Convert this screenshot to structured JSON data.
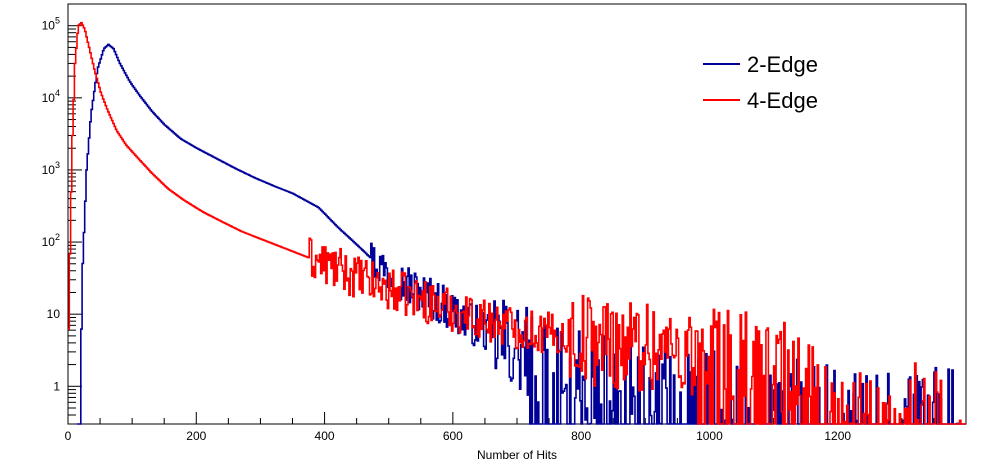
{
  "chart_data": {
    "type": "line",
    "xlabel": "Number of Hits",
    "ylabel": "",
    "xlim": [
      0,
      1400
    ],
    "ylim": [
      0.3,
      200000
    ],
    "yscale": "log",
    "grid": false,
    "legend_position": "top-right",
    "x_ticks": [
      0,
      200,
      400,
      600,
      800,
      1000,
      1200
    ],
    "x_tick_labels": [
      "0",
      "200",
      "400",
      "600",
      "800",
      "1000",
      "1200"
    ],
    "y_ticks": [
      1,
      10,
      100,
      1000,
      10000,
      100000
    ],
    "y_tick_labels": [
      {
        "base": "1",
        "exp": ""
      },
      {
        "base": "10",
        "exp": ""
      },
      {
        "base": "10",
        "exp": "2"
      },
      {
        "base": "10",
        "exp": "3"
      },
      {
        "base": "10",
        "exp": "4"
      },
      {
        "base": "10",
        "exp": "5"
      }
    ],
    "series": [
      {
        "name": "2-Edge",
        "color": "#000099",
        "points": [
          [
            14,
            0.3
          ],
          [
            18,
            2
          ],
          [
            22,
            50
          ],
          [
            28,
            1000
          ],
          [
            35,
            6000
          ],
          [
            45,
            25000
          ],
          [
            55,
            48000
          ],
          [
            62,
            55000
          ],
          [
            70,
            48000
          ],
          [
            80,
            30000
          ],
          [
            95,
            17000
          ],
          [
            110,
            11000
          ],
          [
            130,
            6500
          ],
          [
            150,
            4200
          ],
          [
            175,
            2700
          ],
          [
            200,
            2000
          ],
          [
            230,
            1450
          ],
          [
            260,
            1050
          ],
          [
            290,
            780
          ],
          [
            320,
            600
          ],
          [
            350,
            470
          ],
          [
            390,
            300
          ],
          [
            420,
            160
          ],
          [
            440,
            110
          ],
          [
            460,
            75
          ],
          [
            480,
            50
          ],
          [
            500,
            38
          ],
          [
            520,
            28
          ],
          [
            540,
            22
          ],
          [
            560,
            18
          ],
          [
            580,
            14
          ],
          [
            600,
            11
          ],
          [
            620,
            8
          ],
          [
            650,
            6
          ],
          [
            680,
            4
          ],
          [
            710,
            3
          ],
          [
            740,
            2
          ],
          [
            780,
            1.6
          ],
          [
            820,
            1.3
          ],
          [
            860,
            1.1
          ],
          [
            900,
            1
          ],
          [
            950,
            0.9
          ],
          [
            1000,
            0.8
          ],
          [
            1050,
            0.7
          ],
          [
            1100,
            0.6
          ],
          [
            1150,
            0.5
          ],
          [
            1200,
            0.45
          ],
          [
            1300,
            0.4
          ],
          [
            1390,
            0.4
          ]
        ]
      },
      {
        "name": "4-Edge",
        "color": "#ff0000",
        "points": [
          [
            0,
            8
          ],
          [
            3,
            200
          ],
          [
            6,
            3000
          ],
          [
            10,
            30000
          ],
          [
            15,
            100000
          ],
          [
            20,
            110000
          ],
          [
            25,
            90000
          ],
          [
            32,
            50000
          ],
          [
            40,
            25000
          ],
          [
            50,
            12000
          ],
          [
            60,
            7000
          ],
          [
            75,
            3500
          ],
          [
            90,
            2200
          ],
          [
            110,
            1400
          ],
          [
            130,
            900
          ],
          [
            155,
            550
          ],
          [
            180,
            380
          ],
          [
            210,
            260
          ],
          [
            240,
            190
          ],
          [
            270,
            140
          ],
          [
            300,
            110
          ],
          [
            340,
            80
          ],
          [
            380,
            58
          ],
          [
            420,
            42
          ],
          [
            460,
            30
          ],
          [
            500,
            22
          ],
          [
            540,
            17
          ],
          [
            580,
            13
          ],
          [
            620,
            10
          ],
          [
            660,
            8
          ],
          [
            700,
            6.5
          ],
          [
            740,
            5.5
          ],
          [
            780,
            5
          ],
          [
            820,
            4.5
          ],
          [
            860,
            4
          ],
          [
            900,
            3.6
          ],
          [
            940,
            3.3
          ],
          [
            980,
            3
          ],
          [
            1020,
            2.7
          ],
          [
            1060,
            2.4
          ],
          [
            1100,
            2.2
          ],
          [
            1130,
            1.8
          ],
          [
            1160,
            1
          ],
          [
            1200,
            0.6
          ],
          [
            1300,
            0.5
          ],
          [
            1390,
            0.45
          ]
        ]
      }
    ]
  }
}
